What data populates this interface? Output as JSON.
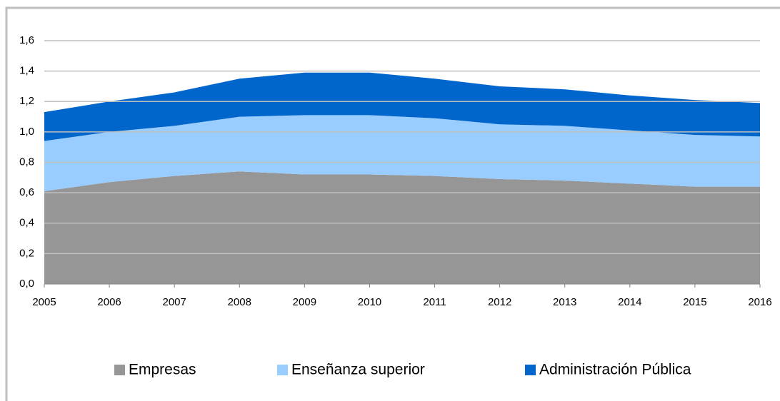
{
  "chart_data": {
    "type": "stacked_area",
    "categories": [
      "2005",
      "2006",
      "2007",
      "2008",
      "2009",
      "2010",
      "2011",
      "2012",
      "2013",
      "2014",
      "2015",
      "2016"
    ],
    "series": [
      {
        "name": "Empresas",
        "color": "#969696",
        "values": [
          0.61,
          0.67,
          0.71,
          0.74,
          0.72,
          0.72,
          0.71,
          0.69,
          0.68,
          0.66,
          0.64,
          0.64
        ]
      },
      {
        "name": "Enseñanza superior",
        "color": "#99ccff",
        "values": [
          0.33,
          0.33,
          0.33,
          0.36,
          0.39,
          0.39,
          0.38,
          0.36,
          0.36,
          0.35,
          0.34,
          0.33
        ]
      },
      {
        "name": "Administración Pública",
        "color": "#0066cc",
        "values": [
          0.19,
          0.2,
          0.22,
          0.25,
          0.28,
          0.28,
          0.26,
          0.25,
          0.24,
          0.23,
          0.23,
          0.22
        ]
      }
    ],
    "ylim": [
      0,
      1.6
    ],
    "yticks": [
      {
        "value": 0,
        "label": "0,0"
      },
      {
        "value": 0.2,
        "label": "0,2"
      },
      {
        "value": 0.4,
        "label": "0,4"
      },
      {
        "value": 0.6,
        "label": "0,6"
      },
      {
        "value": 0.8,
        "label": "0,8"
      },
      {
        "value": 1,
        "label": "1,0"
      },
      {
        "value": 1.2,
        "label": "1,2"
      },
      {
        "value": 1.4,
        "label": "1,4"
      },
      {
        "value": 1.6,
        "label": "1,6"
      }
    ],
    "grid": true,
    "legend": "bottom"
  }
}
